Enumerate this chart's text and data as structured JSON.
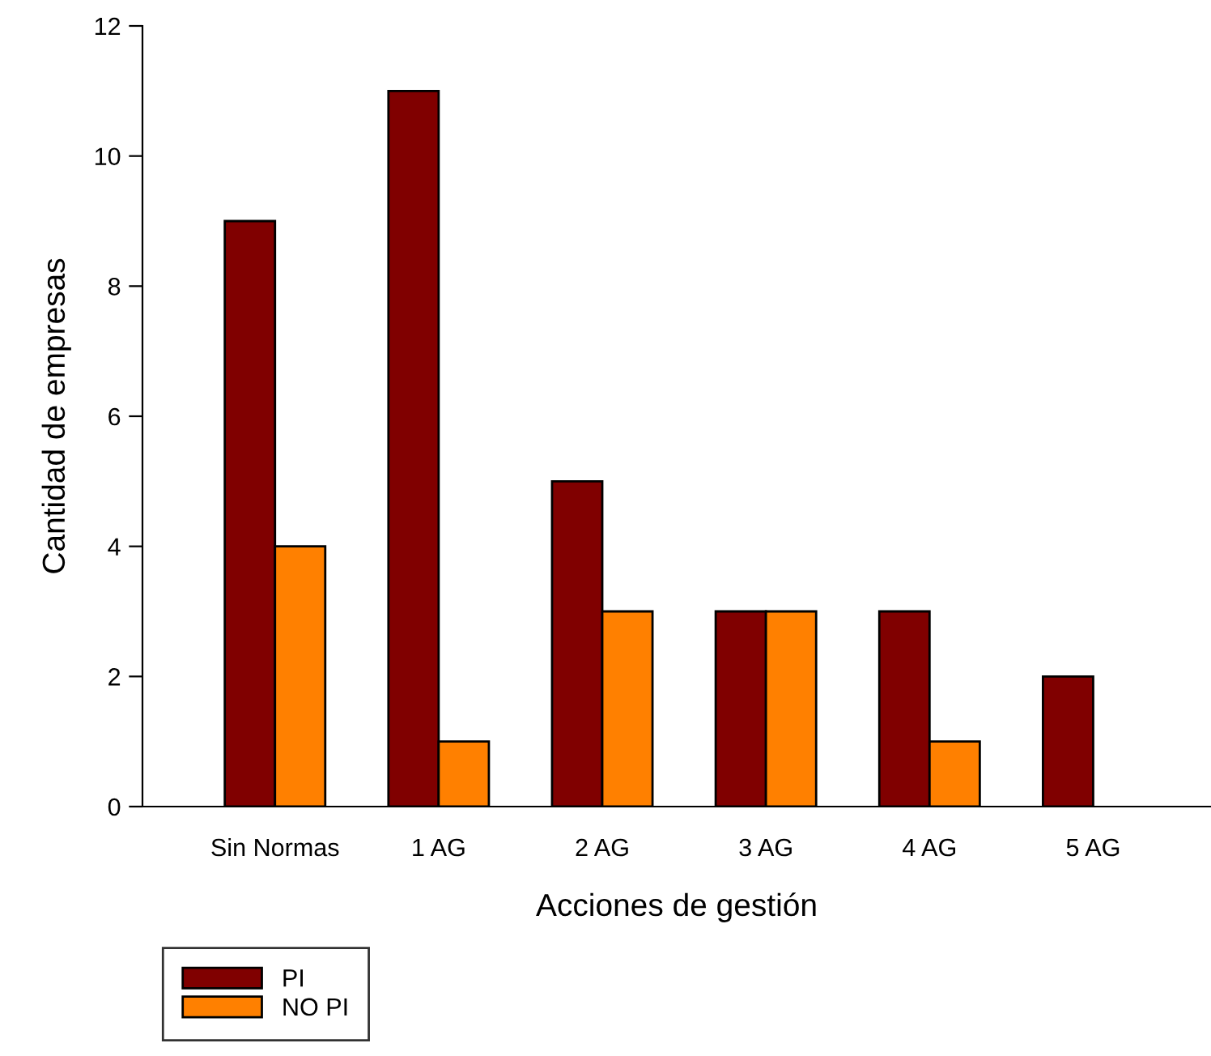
{
  "chart_data": {
    "type": "bar",
    "xlabel": "Acciones de gestión",
    "ylabel": "Cantidad de empresas",
    "categories": [
      "Sin Normas",
      "1 AG",
      "2 AG",
      "3 AG",
      "4 AG",
      "5 AG"
    ],
    "series": [
      {
        "name": "PI",
        "color": "#800000",
        "values": [
          9,
          11,
          5,
          3,
          3,
          2
        ]
      },
      {
        "name": "NO PI",
        "color": "#ff8000",
        "values": [
          4,
          1,
          3,
          3,
          1,
          null
        ]
      }
    ],
    "ylim": [
      0,
      12
    ],
    "yticks": [
      0,
      2,
      4,
      6,
      8,
      10,
      12
    ],
    "grid": false,
    "legend": "bottom left"
  }
}
